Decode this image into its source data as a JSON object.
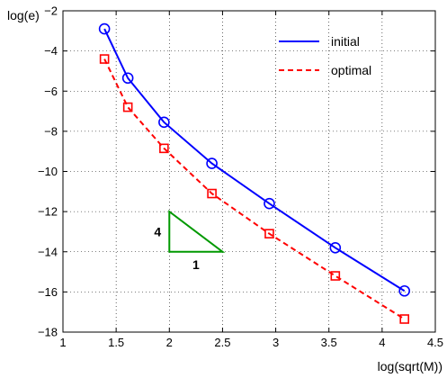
{
  "chart_data": {
    "type": "line",
    "title": "",
    "xlabel": "log(sqrt(M))",
    "ylabel": "log(e)",
    "xlim": [
      1,
      4.5
    ],
    "ylim": [
      -18,
      -2
    ],
    "xticks": [
      1,
      1.5,
      2,
      2.5,
      3,
      3.5,
      4,
      4.5
    ],
    "xtick_labels": [
      "1",
      "1.5",
      "2",
      "2.5",
      "3",
      "3.5",
      "4",
      "4.5"
    ],
    "yticks": [
      -18,
      -16,
      -14,
      -12,
      -10,
      -8,
      -6,
      -4,
      -2
    ],
    "ytick_labels": [
      "−18",
      "−16",
      "−14",
      "−12",
      "−10",
      "−8",
      "−6",
      "−4",
      "−2"
    ],
    "grid": true,
    "legend_position": "top-right",
    "series": [
      {
        "name": "initial",
        "color": "#0000ff",
        "line_style": "solid",
        "marker": "circle",
        "x": [
          1.39,
          1.61,
          1.95,
          2.4,
          2.94,
          3.56,
          4.21
        ],
        "y": [
          -2.9,
          -5.35,
          -7.55,
          -9.6,
          -11.6,
          -13.8,
          -15.95
        ]
      },
      {
        "name": "optimal",
        "color": "#ff0000",
        "line_style": "dashed",
        "marker": "square",
        "x": [
          1.39,
          1.61,
          1.95,
          2.4,
          2.94,
          3.56,
          4.21
        ],
        "y": [
          -4.4,
          -6.8,
          -8.85,
          -11.1,
          -13.1,
          -15.2,
          -17.35
        ]
      }
    ],
    "slope_triangle": {
      "color": "#009900",
      "x_range": [
        2,
        2.5
      ],
      "y_range": [
        -14,
        -12
      ],
      "vertical_label": "4",
      "horizontal_label": "1"
    }
  }
}
